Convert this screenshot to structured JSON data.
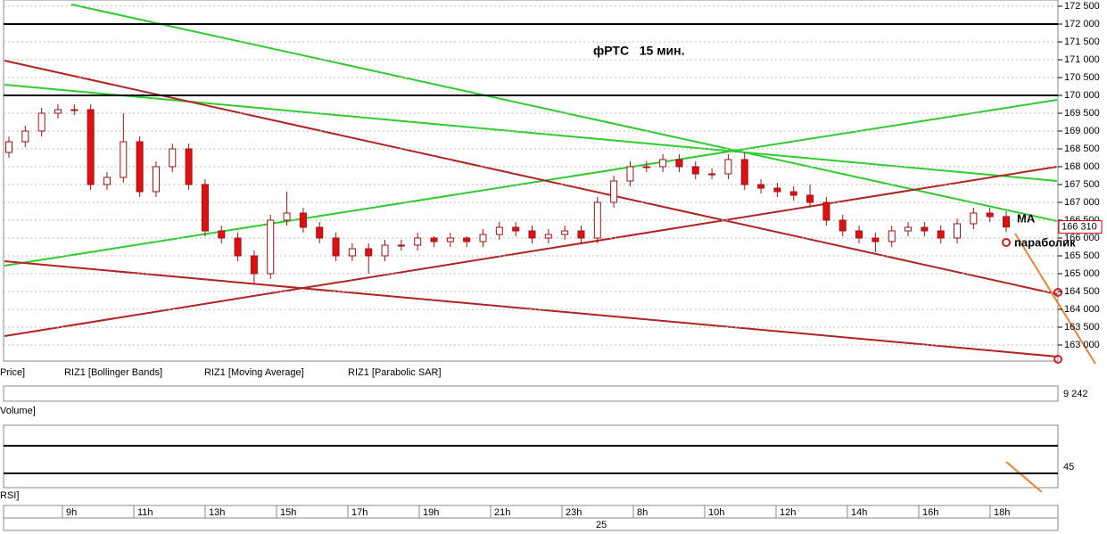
{
  "chart_data": {
    "type": "candlestick",
    "title": "фРТС   15 мин.",
    "annotations": {
      "ma": "MA",
      "sar": "параболик"
    },
    "legend": [
      "Price]",
      "RIZ1 [Bollinger Bands]",
      "RIZ1 [Moving Average]",
      "RIZ1 [Parabolic SAR]"
    ],
    "volume_panel": {
      "label": "Volume]",
      "last": {
        "value": 9242,
        "label": "9 242"
      }
    },
    "rsi_panel": {
      "label": "RSI]",
      "yticks": [
        45
      ]
    },
    "time_labels": [
      "9h",
      "11h",
      "13h",
      "15h",
      "17h",
      "19h",
      "21h",
      "23h",
      "8h",
      "10h",
      "12h",
      "14h",
      "16h",
      "18h"
    ],
    "date_label": "25",
    "up_color": "#ffffff",
    "down_color": "#e01010",
    "ylim": [
      162550,
      172675
    ],
    "yticks": [
      {
        "value": 163000,
        "label": "163 000"
      },
      {
        "value": 163500,
        "label": "163 500"
      },
      {
        "value": 164000,
        "label": "164 000"
      },
      {
        "value": 164500,
        "label": "164 500"
      },
      {
        "value": 165000,
        "label": "165 000"
      },
      {
        "value": 165500,
        "label": "165 500"
      },
      {
        "value": 166000,
        "label": "166 000"
      },
      {
        "value": 166500,
        "label": "166 500"
      },
      {
        "value": 167000,
        "label": "167 000"
      },
      {
        "value": 167500,
        "label": "167 500"
      },
      {
        "value": 168000,
        "label": "168 000"
      },
      {
        "value": 168500,
        "label": "168 500"
      },
      {
        "value": 169000,
        "label": "169 000"
      },
      {
        "value": 169500,
        "label": "169 500"
      },
      {
        "value": 170000,
        "label": "170 000"
      },
      {
        "value": 170500,
        "label": "170 500"
      },
      {
        "value": 171000,
        "label": "171 000"
      },
      {
        "value": 171500,
        "label": "171 500"
      },
      {
        "value": 172000,
        "label": "172 000"
      },
      {
        "value": 172500,
        "label": "172 500"
      }
    ],
    "levels": [
      172000,
      170000
    ],
    "last_price": {
      "value": 166310,
      "label": "166 310"
    },
    "open": [
      168400,
      168700,
      169000,
      169500,
      169600,
      169600,
      167500,
      167700,
      168700,
      167300,
      168000,
      168500,
      167500,
      166200,
      166000,
      165500,
      165000,
      166500,
      166700,
      166300,
      166000,
      165500,
      165700,
      165500,
      165800,
      165800,
      166000,
      165900,
      166000,
      165900,
      166100,
      166300,
      166200,
      166000,
      166100,
      166200,
      166000,
      167000,
      167600,
      168000,
      168000,
      168200,
      168000,
      167800,
      167800,
      168200,
      167500,
      167400,
      167300,
      167200,
      167000,
      166500,
      166200,
      166000,
      165900,
      166200,
      166300,
      166200,
      166000,
      166400,
      166700,
      166600
    ],
    "close": [
      168700,
      169000,
      169500,
      169600,
      169600,
      167500,
      167700,
      168700,
      167300,
      168000,
      168500,
      167500,
      166200,
      166000,
      165500,
      165000,
      166500,
      166700,
      166300,
      166000,
      165500,
      165700,
      165500,
      165800,
      165800,
      166000,
      165900,
      166000,
      165900,
      166100,
      166300,
      166200,
      166000,
      166100,
      166200,
      166000,
      167000,
      167600,
      168000,
      168000,
      168200,
      168000,
      167800,
      167800,
      168200,
      167500,
      167400,
      167300,
      167200,
      167000,
      166500,
      166200,
      166000,
      165900,
      166200,
      166300,
      166200,
      166000,
      166400,
      166700,
      166600,
      166310
    ],
    "high": [
      168850,
      169150,
      169650,
      169750,
      169750,
      169750,
      167850,
      169500,
      168850,
      168150,
      168650,
      168650,
      167650,
      166350,
      166150,
      165650,
      166650,
      167300,
      166850,
      166450,
      166150,
      165850,
      165850,
      165950,
      165950,
      166150,
      166050,
      166150,
      166050,
      166250,
      166450,
      166450,
      166350,
      166250,
      166350,
      166350,
      167150,
      167750,
      168150,
      168150,
      168350,
      168350,
      168150,
      167950,
      168350,
      168400,
      167650,
      167550,
      167450,
      167500,
      167150,
      166650,
      166350,
      166150,
      166350,
      166450,
      166450,
      166350,
      166550,
      166850,
      166850,
      166750
    ],
    "low": [
      168250,
      168550,
      168850,
      169350,
      169450,
      167350,
      167350,
      167550,
      167150,
      167150,
      167850,
      167350,
      166050,
      165850,
      165350,
      164700,
      164850,
      166350,
      166150,
      165850,
      165350,
      165350,
      165000,
      165350,
      165650,
      165650,
      165750,
      165750,
      165750,
      165750,
      165950,
      166050,
      165850,
      165850,
      165950,
      165850,
      165850,
      166850,
      167450,
      167850,
      167850,
      167850,
      167650,
      167650,
      167650,
      167350,
      167250,
      167150,
      167050,
      166850,
      166350,
      166050,
      165850,
      165600,
      165750,
      166050,
      166050,
      165850,
      165850,
      166250,
      166450,
      166160
    ]
  }
}
